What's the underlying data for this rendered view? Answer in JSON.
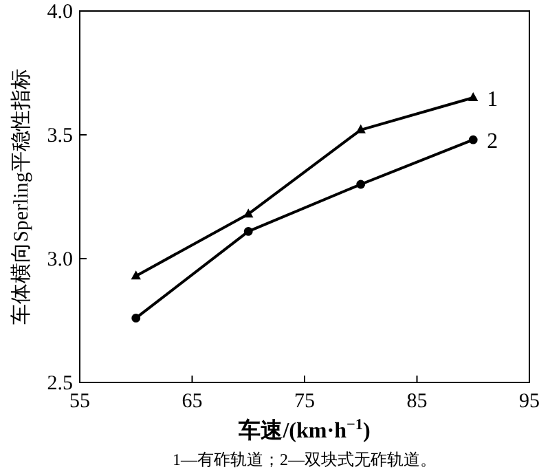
{
  "chart_data": {
    "type": "line",
    "xlabel": "车速/(km·h$^{−1}$)",
    "ylabel": "车体横向Sperling平稳性指标",
    "annotations": [
      "1—有砟轨道；2—双块式无砟轨道。"
    ],
    "x": [
      60,
      70,
      80,
      90
    ],
    "series": [
      {
        "name": "1",
        "color": "#000000",
        "marker": "triangle",
        "values": [
          2.93,
          3.18,
          3.52,
          3.65
        ]
      },
      {
        "name": "2",
        "color": "#000000",
        "marker": "circle",
        "values": [
          2.76,
          3.11,
          3.3,
          3.48
        ]
      }
    ],
    "xlim": [
      55,
      95
    ],
    "xticks": [
      55,
      65,
      75,
      85,
      95
    ],
    "ylim": [
      2.5,
      4.0
    ],
    "yticks": [
      {
        "value": 2.5,
        "label": "2.5"
      },
      {
        "value": 3,
        "label": "3.0"
      },
      {
        "value": 3.5,
        "label": "3.5"
      },
      {
        "value": 4,
        "label": "4.0"
      }
    ],
    "grid": false,
    "legend": false,
    "line_style": "solid"
  }
}
